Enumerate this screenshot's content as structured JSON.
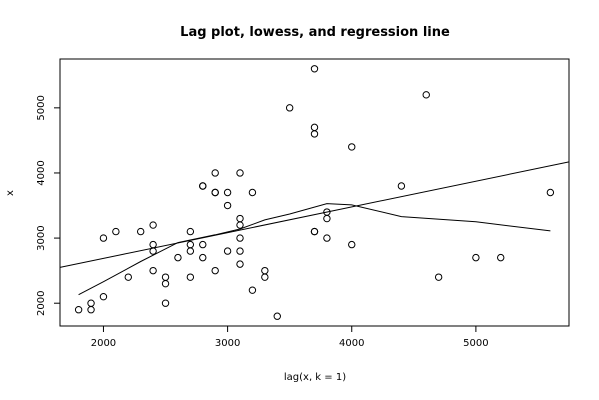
{
  "chart_data": {
    "type": "scatter",
    "title": "Lag plot, lowess, and regression line",
    "xlabel": "lag(x, k = 1)",
    "ylabel": "x",
    "xlim": [
      1650,
      5750
    ],
    "ylim": [
      1650,
      5750
    ],
    "x_ticks": [
      2000,
      3000,
      4000,
      5000
    ],
    "y_ticks": [
      2000,
      3000,
      4000,
      5000
    ],
    "grid": false,
    "points": [
      [
        1800,
        1900
      ],
      [
        1900,
        2000
      ],
      [
        1900,
        1900
      ],
      [
        2000,
        3000
      ],
      [
        2000,
        2100
      ],
      [
        2100,
        3100
      ],
      [
        2200,
        2400
      ],
      [
        2300,
        3100
      ],
      [
        2400,
        3200
      ],
      [
        2400,
        2900
      ],
      [
        2400,
        2800
      ],
      [
        2400,
        2500
      ],
      [
        2500,
        2400
      ],
      [
        2500,
        2300
      ],
      [
        2500,
        2000
      ],
      [
        2600,
        2700
      ],
      [
        2700,
        3100
      ],
      [
        2700,
        2900
      ],
      [
        2700,
        2800
      ],
      [
        2700,
        2400
      ],
      [
        2800,
        3800
      ],
      [
        2800,
        3800
      ],
      [
        2800,
        2900
      ],
      [
        2800,
        2700
      ],
      [
        2900,
        4000
      ],
      [
        2900,
        3700
      ],
      [
        2900,
        3700
      ],
      [
        2900,
        2500
      ],
      [
        3000,
        3700
      ],
      [
        3000,
        3500
      ],
      [
        3000,
        2800
      ],
      [
        3100,
        4000
      ],
      [
        3100,
        3300
      ],
      [
        3100,
        3200
      ],
      [
        3100,
        3000
      ],
      [
        3100,
        2800
      ],
      [
        3100,
        2600
      ],
      [
        3200,
        3700
      ],
      [
        3200,
        2200
      ],
      [
        3300,
        2500
      ],
      [
        3300,
        2400
      ],
      [
        3400,
        1800
      ],
      [
        3500,
        5000
      ],
      [
        3700,
        5600
      ],
      [
        3700,
        4700
      ],
      [
        3700,
        4600
      ],
      [
        3700,
        3100
      ],
      [
        3700,
        3100
      ],
      [
        3800,
        3400
      ],
      [
        3800,
        3300
      ],
      [
        3800,
        3000
      ],
      [
        4000,
        4400
      ],
      [
        4000,
        2900
      ],
      [
        4400,
        3800
      ],
      [
        4600,
        5200
      ],
      [
        4700,
        2400
      ],
      [
        5000,
        2700
      ],
      [
        5200,
        2700
      ],
      [
        5600,
        3700
      ]
    ],
    "regression_line": {
      "x": [
        1650,
        5750
      ],
      "y": [
        2550,
        4170
      ]
    },
    "lowess_line": {
      "x": [
        1800,
        2000,
        2300,
        2600,
        2900,
        3100,
        3300,
        3500,
        3800,
        4000,
        4400,
        5000,
        5600
      ],
      "y": [
        2130,
        2330,
        2640,
        2930,
        3050,
        3140,
        3280,
        3370,
        3530,
        3510,
        3330,
        3250,
        3110
      ]
    }
  }
}
